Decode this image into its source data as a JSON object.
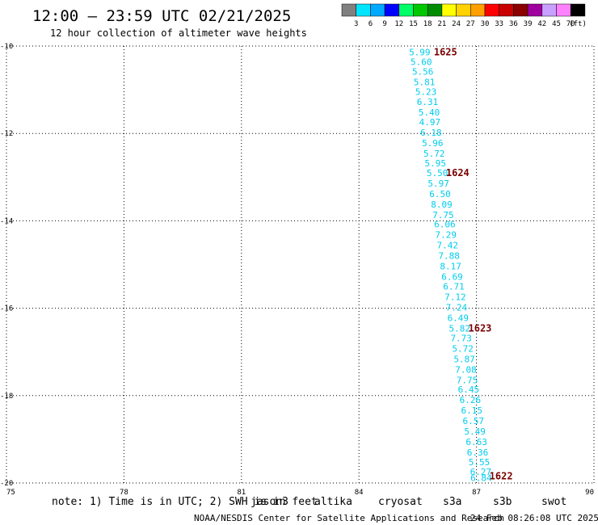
{
  "header": {
    "title": "12:00 — 23:59 UTC 02/21/2025",
    "subtitle": "12 hour collection of altimeter wave heights"
  },
  "colorbar": {
    "labels": [
      "3",
      "6",
      "9",
      "12",
      "15",
      "18",
      "21",
      "24",
      "27",
      "30",
      "33",
      "36",
      "39",
      "42",
      "45",
      "70"
    ],
    "unit": "(ft)",
    "colors": [
      "#808080",
      "#00e5ff",
      "#00a8ff",
      "#0000ff",
      "#00ff66",
      "#00c800",
      "#008c00",
      "#ffff00",
      "#ffd200",
      "#ffa000",
      "#ff0000",
      "#c80000",
      "#8b0000",
      "#a000a0",
      "#c8a0ff",
      "#ff80ff",
      "#000000"
    ]
  },
  "footer": {
    "note_text": "note: 1) Time is in UTC; 2) SWH is in feet",
    "credit": "NOAA/NESDIS Center for Satellite Applications and Research",
    "timestamp": "24 Feb 08:26:08 UTC 2025"
  },
  "legend": [
    {
      "label": "jason3",
      "color": "#007000"
    },
    {
      "label": "altika",
      "color": "#ff8c00"
    },
    {
      "label": "cryosat",
      "color": "#ff0000"
    },
    {
      "label": "s3a",
      "color": "#8b0000"
    },
    {
      "label": "s3b",
      "color": "#c8a0ff"
    },
    {
      "label": "swot",
      "color": "#ffa0dc"
    }
  ],
  "chart_data": {
    "type": "scatter",
    "xlim": [
      75,
      90
    ],
    "ylim": [
      -20,
      -10
    ],
    "x_ticks": [
      "75",
      "78",
      "81",
      "84",
      "87",
      "90"
    ],
    "y_ticks": [
      "-10",
      "-12",
      "-14",
      "-16",
      "-18",
      "-20"
    ],
    "grid": true,
    "series": [
      {
        "name": "jason3",
        "color": "#00ccee",
        "points": [
          {
            "x": 85.55,
            "y": -10.14,
            "label": "5.99"
          },
          {
            "x": 85.59,
            "y": -10.36,
            "label": "5.60"
          },
          {
            "x": 85.63,
            "y": -10.58,
            "label": "5.56"
          },
          {
            "x": 85.67,
            "y": -10.82,
            "label": "5.81"
          },
          {
            "x": 85.71,
            "y": -11.04,
            "label": "5.23"
          },
          {
            "x": 85.75,
            "y": -11.28,
            "label": "6.31"
          },
          {
            "x": 85.79,
            "y": -11.52,
            "label": "5.40"
          },
          {
            "x": 85.81,
            "y": -11.74,
            "label": "4.97"
          },
          {
            "x": 85.84,
            "y": -11.98,
            "label": "6.18"
          },
          {
            "x": 85.88,
            "y": -12.22,
            "label": "5.96"
          },
          {
            "x": 85.92,
            "y": -12.46,
            "label": "5.72"
          },
          {
            "x": 85.95,
            "y": -12.68,
            "label": "5.95"
          },
          {
            "x": 86.0,
            "y": -12.9,
            "label": "5.50"
          },
          {
            "x": 86.03,
            "y": -13.14,
            "label": "5.97"
          },
          {
            "x": 86.07,
            "y": -13.38,
            "label": "6.50"
          },
          {
            "x": 86.11,
            "y": -13.62,
            "label": "8.09"
          },
          {
            "x": 86.15,
            "y": -13.86,
            "label": "7.75"
          },
          {
            "x": 86.19,
            "y": -14.08,
            "label": "6.06"
          },
          {
            "x": 86.22,
            "y": -14.32,
            "label": "7.29"
          },
          {
            "x": 86.26,
            "y": -14.56,
            "label": "7.42"
          },
          {
            "x": 86.3,
            "y": -14.8,
            "label": "7.88"
          },
          {
            "x": 86.34,
            "y": -15.04,
            "label": "8.17"
          },
          {
            "x": 86.38,
            "y": -15.28,
            "label": "6.69"
          },
          {
            "x": 86.42,
            "y": -15.5,
            "label": "6.71"
          },
          {
            "x": 86.46,
            "y": -15.74,
            "label": "7.12"
          },
          {
            "x": 86.49,
            "y": -15.98,
            "label": "7.24"
          },
          {
            "x": 86.53,
            "y": -16.22,
            "label": "6.49"
          },
          {
            "x": 86.57,
            "y": -16.46,
            "label": "5.82"
          },
          {
            "x": 86.61,
            "y": -16.68,
            "label": "7.73"
          },
          {
            "x": 86.65,
            "y": -16.92,
            "label": "5.72"
          },
          {
            "x": 86.69,
            "y": -17.16,
            "label": "5.87"
          },
          {
            "x": 86.73,
            "y": -17.4,
            "label": "7.08"
          },
          {
            "x": 86.76,
            "y": -17.64,
            "label": "7.75"
          },
          {
            "x": 86.8,
            "y": -17.86,
            "label": "6.45"
          },
          {
            "x": 86.84,
            "y": -18.1,
            "label": "6.26"
          },
          {
            "x": 86.88,
            "y": -18.34,
            "label": "6.15"
          },
          {
            "x": 86.92,
            "y": -18.58,
            "label": "6.57"
          },
          {
            "x": 86.96,
            "y": -18.82,
            "label": "5.49"
          },
          {
            "x": 87.0,
            "y": -19.06,
            "label": "6.63"
          },
          {
            "x": 87.03,
            "y": -19.3,
            "label": "6.36"
          },
          {
            "x": 87.07,
            "y": -19.52,
            "label": "5.55"
          },
          {
            "x": 87.11,
            "y": -19.74,
            "label": "6.27"
          },
          {
            "x": 87.12,
            "y": -19.88,
            "label": "6.84"
          }
        ]
      }
    ],
    "annotations": [
      {
        "x": 86.21,
        "y": -10.14,
        "label": "1625"
      },
      {
        "x": 86.52,
        "y": -12.9,
        "label": "1624"
      },
      {
        "x": 87.09,
        "y": -16.46,
        "label": "1623"
      },
      {
        "x": 87.63,
        "y": -19.84,
        "label": "1622"
      }
    ]
  }
}
